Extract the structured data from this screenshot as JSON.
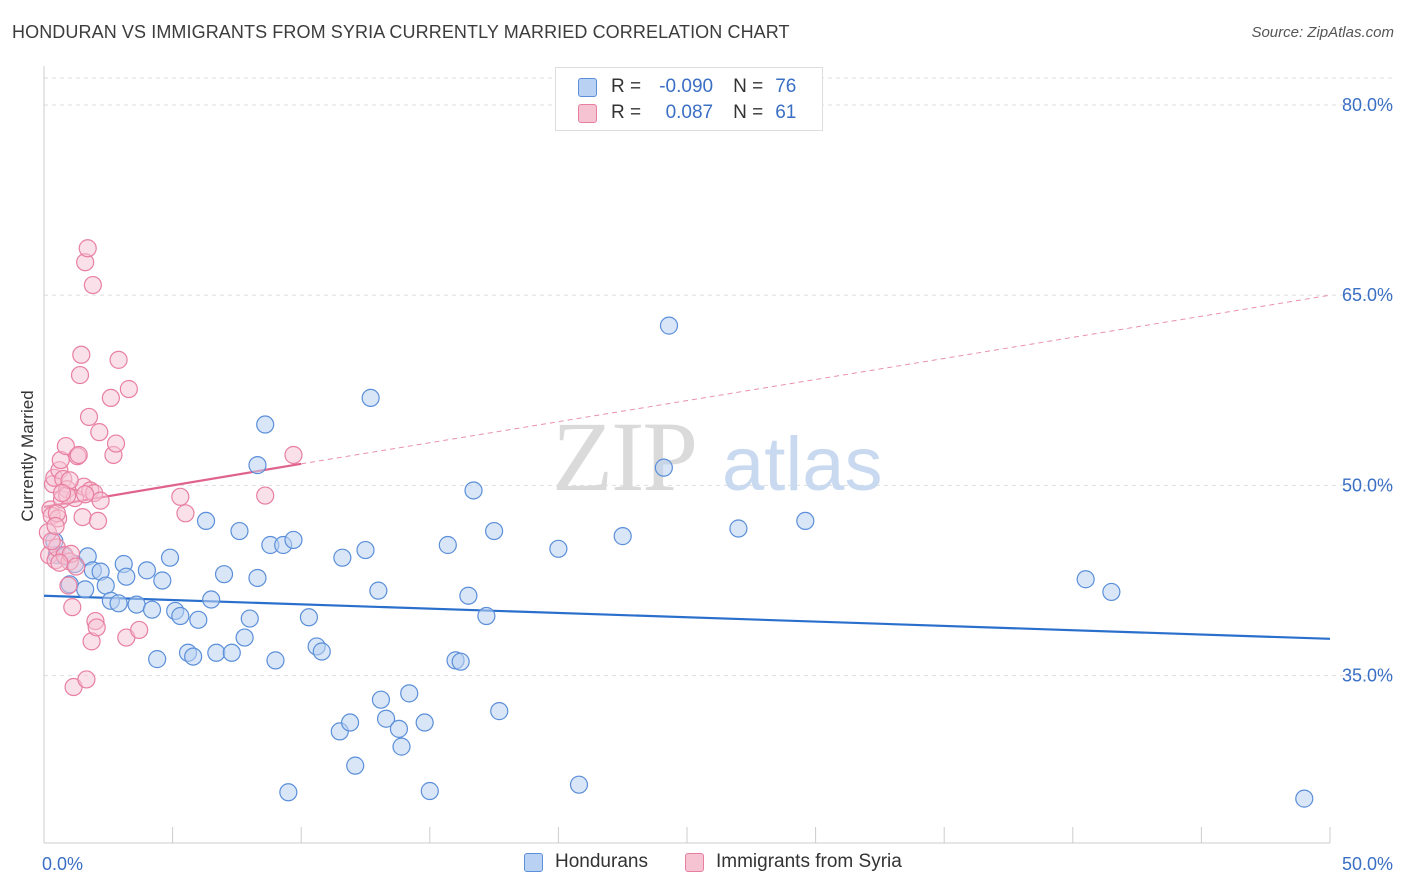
{
  "title": "HONDURAN VS IMMIGRANTS FROM SYRIA CURRENTLY MARRIED CORRELATION CHART",
  "source": "Source: ZipAtlas.com",
  "watermark": {
    "zip": "ZIP",
    "atlas": "atlas"
  },
  "colors": {
    "blue": "#5b8fd9",
    "blue_fill": "#b9d1f3",
    "blue_line": "#2a6fcc",
    "pink": "#e87fa1",
    "pink_fill": "#f6c3d3",
    "pink_line": "#e0628c",
    "tick_label": "#3a6fc4"
  },
  "legend": {
    "rows": [
      {
        "r_label": "R =",
        "r_value": "-0.090",
        "n_label": "N =",
        "n_value": "76"
      },
      {
        "r_label": "R =",
        "r_value": "0.087",
        "n_label": "N =",
        "n_value": "61"
      }
    ]
  },
  "bottom_legend": {
    "series1": "Hondurans",
    "series2": "Immigrants from Syria"
  },
  "chart_data": {
    "type": "scatter",
    "title": "HONDURAN VS IMMIGRANTS FROM SYRIA CURRENTLY MARRIED CORRELATION CHART",
    "xlabel": "",
    "ylabel": "Currently Married",
    "xlim": [
      0,
      50
    ],
    "ylim": [
      21.8,
      82.6
    ],
    "x_tick_labels": {
      "left": "0.0%",
      "right": "50.0%"
    },
    "y_ticks": [
      {
        "value": 80,
        "label": "80.0%"
      },
      {
        "value": 65,
        "label": "65.0%"
      },
      {
        "value": 50,
        "label": "50.0%"
      },
      {
        "value": 35,
        "label": "35.0%"
      }
    ],
    "grid": true,
    "series": [
      {
        "name": "Hondurans",
        "r": -0.09,
        "n": 76,
        "trend": {
          "x": [
            0,
            50
          ],
          "y": [
            41.3,
            37.9
          ]
        },
        "points": [
          [
            0.4,
            45.6
          ],
          [
            0.5,
            44.5
          ],
          [
            0.8,
            44.4
          ],
          [
            1.0,
            42.2
          ],
          [
            1.2,
            43.8
          ],
          [
            1.6,
            41.8
          ],
          [
            1.7,
            44.4
          ],
          [
            1.9,
            43.3
          ],
          [
            2.2,
            43.2
          ],
          [
            2.4,
            42.1
          ],
          [
            2.6,
            40.9
          ],
          [
            2.9,
            40.7
          ],
          [
            3.1,
            43.8
          ],
          [
            3.2,
            42.8
          ],
          [
            3.6,
            40.6
          ],
          [
            4.0,
            43.3
          ],
          [
            4.2,
            40.2
          ],
          [
            4.4,
            36.3
          ],
          [
            4.6,
            42.5
          ],
          [
            4.9,
            44.3
          ],
          [
            5.1,
            40.1
          ],
          [
            5.3,
            39.7
          ],
          [
            5.6,
            36.8
          ],
          [
            5.8,
            36.5
          ],
          [
            6.0,
            39.4
          ],
          [
            6.3,
            47.2
          ],
          [
            6.5,
            41.0
          ],
          [
            6.7,
            36.8
          ],
          [
            7.0,
            43.0
          ],
          [
            7.3,
            36.8
          ],
          [
            7.6,
            46.4
          ],
          [
            7.8,
            38.0
          ],
          [
            8.0,
            39.5
          ],
          [
            8.3,
            42.7
          ],
          [
            8.6,
            54.8
          ],
          [
            8.8,
            45.3
          ],
          [
            9.0,
            36.2
          ],
          [
            9.3,
            45.3
          ],
          [
            9.5,
            25.8
          ],
          [
            9.7,
            45.7
          ],
          [
            8.3,
            51.6
          ],
          [
            10.3,
            39.6
          ],
          [
            10.6,
            37.3
          ],
          [
            10.8,
            36.9
          ],
          [
            11.5,
            30.6
          ],
          [
            11.6,
            44.3
          ],
          [
            11.9,
            31.3
          ],
          [
            12.1,
            27.9
          ],
          [
            12.5,
            44.9
          ],
          [
            12.7,
            56.9
          ],
          [
            13.0,
            41.7
          ],
          [
            13.1,
            33.1
          ],
          [
            13.3,
            31.6
          ],
          [
            13.8,
            30.8
          ],
          [
            13.9,
            29.4
          ],
          [
            14.2,
            33.6
          ],
          [
            14.8,
            31.3
          ],
          [
            15.0,
            25.9
          ],
          [
            15.7,
            45.3
          ],
          [
            16.0,
            36.2
          ],
          [
            16.2,
            36.1
          ],
          [
            16.5,
            41.3
          ],
          [
            16.7,
            49.6
          ],
          [
            17.2,
            39.7
          ],
          [
            17.5,
            46.4
          ],
          [
            17.7,
            32.2
          ],
          [
            20.0,
            45.0
          ],
          [
            20.8,
            26.4
          ],
          [
            22.5,
            46.0
          ],
          [
            24.3,
            62.6
          ],
          [
            24.1,
            51.4
          ],
          [
            27.0,
            46.6
          ],
          [
            29.6,
            47.2
          ],
          [
            40.5,
            42.6
          ],
          [
            41.5,
            41.6
          ],
          [
            49.0,
            25.3
          ]
        ]
      },
      {
        "name": "Immigrants from Syria",
        "r": 0.087,
        "n": 61,
        "trend": {
          "x": [
            0,
            10
          ],
          "y": [
            48.3,
            51.7
          ]
        },
        "trend_extension": {
          "x": [
            10,
            50
          ],
          "y": [
            51.7,
            65.0
          ]
        },
        "points": [
          [
            0.15,
            46.3
          ],
          [
            0.2,
            44.5
          ],
          [
            0.25,
            48.1
          ],
          [
            0.3,
            47.6
          ],
          [
            0.35,
            50.1
          ],
          [
            0.4,
            50.6
          ],
          [
            0.45,
            44.1
          ],
          [
            0.5,
            45.1
          ],
          [
            0.55,
            47.4
          ],
          [
            0.6,
            51.2
          ],
          [
            0.65,
            52.0
          ],
          [
            0.7,
            48.9
          ],
          [
            0.75,
            50.5
          ],
          [
            0.8,
            44.5
          ],
          [
            0.85,
            53.1
          ],
          [
            0.9,
            49.7
          ],
          [
            0.95,
            42.1
          ],
          [
            1.0,
            44.0
          ],
          [
            1.05,
            44.6
          ],
          [
            1.1,
            40.4
          ],
          [
            1.15,
            34.1
          ],
          [
            1.2,
            49.0
          ],
          [
            1.3,
            52.3
          ],
          [
            1.35,
            52.4
          ],
          [
            1.4,
            58.7
          ],
          [
            1.45,
            60.3
          ],
          [
            1.5,
            47.5
          ],
          [
            1.55,
            49.9
          ],
          [
            1.6,
            67.6
          ],
          [
            1.65,
            34.7
          ],
          [
            1.7,
            68.7
          ],
          [
            1.75,
            55.4
          ],
          [
            1.8,
            49.6
          ],
          [
            1.85,
            37.7
          ],
          [
            1.9,
            65.8
          ],
          [
            1.95,
            49.4
          ],
          [
            2.0,
            39.3
          ],
          [
            2.05,
            38.8
          ],
          [
            2.1,
            47.2
          ],
          [
            2.15,
            54.2
          ],
          [
            2.6,
            56.9
          ],
          [
            2.7,
            52.4
          ],
          [
            2.8,
            53.3
          ],
          [
            2.9,
            59.9
          ],
          [
            3.2,
            38.0
          ],
          [
            3.3,
            57.6
          ],
          [
            3.7,
            38.6
          ],
          [
            5.3,
            49.1
          ],
          [
            5.5,
            47.8
          ],
          [
            8.6,
            49.2
          ],
          [
            9.7,
            52.4
          ],
          [
            0.3,
            45.6
          ],
          [
            0.6,
            43.9
          ],
          [
            1.25,
            43.6
          ],
          [
            0.9,
            49.2
          ],
          [
            2.2,
            48.8
          ],
          [
            0.5,
            47.8
          ],
          [
            1.0,
            50.4
          ],
          [
            0.7,
            49.4
          ],
          [
            1.6,
            49.3
          ],
          [
            0.45,
            46.8
          ]
        ]
      }
    ]
  }
}
